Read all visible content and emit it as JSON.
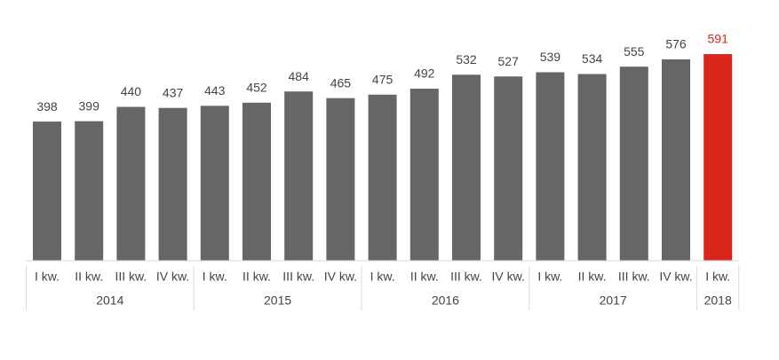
{
  "chart_data": {
    "type": "bar",
    "groups": [
      {
        "name": "2014",
        "color": "#666666",
        "categories": [
          "I kw.",
          "II kw.",
          "III kw.",
          "IV kw."
        ],
        "values": [
          398,
          399,
          440,
          437
        ]
      },
      {
        "name": "2015",
        "color": "#666666",
        "categories": [
          "I kw.",
          "II kw.",
          "III kw.",
          "IV kw."
        ],
        "values": [
          443,
          452,
          484,
          465
        ]
      },
      {
        "name": "2016",
        "color": "#666666",
        "categories": [
          "I kw.",
          "II kw.",
          "III kw.",
          "IV kw."
        ],
        "values": [
          475,
          492,
          532,
          527
        ]
      },
      {
        "name": "2017",
        "color": "#666666",
        "categories": [
          "I kw.",
          "II kw.",
          "III kw.",
          "IV kw."
        ],
        "values": [
          539,
          534,
          555,
          576
        ]
      },
      {
        "name": "2018",
        "color": "#d9261c",
        "categories": [
          "I kw."
        ],
        "values": [
          591
        ]
      }
    ]
  }
}
